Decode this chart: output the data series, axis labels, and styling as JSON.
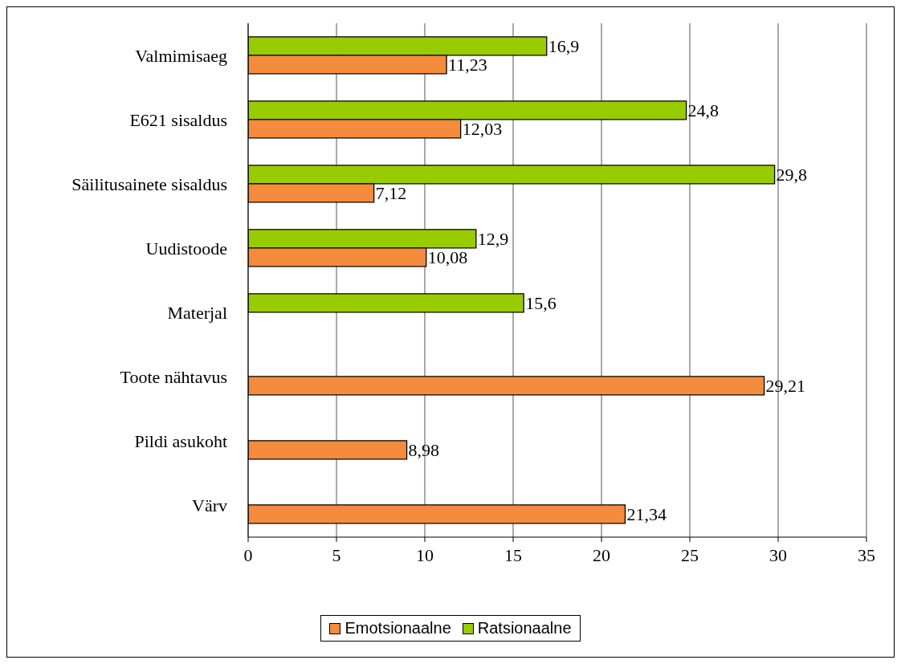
{
  "chart_data": {
    "type": "bar",
    "orientation": "horizontal",
    "categories": [
      "Valmimisaeg",
      "E621 sisaldus",
      "Säilitusainete sisaldus",
      "Uudistoode",
      "Materjal",
      "Toote nähtavus",
      "Pildi asukoht",
      "Värv"
    ],
    "series": [
      {
        "name": "Emotsionaalne",
        "color": "#f58b3c",
        "values": [
          11.23,
          12.03,
          7.12,
          10.08,
          null,
          29.21,
          8.98,
          21.34
        ],
        "value_labels": [
          "11,23",
          "12,03",
          "7,12",
          "10,08",
          null,
          "29,21",
          "8,98",
          "21,34"
        ]
      },
      {
        "name": "Ratsionaalne",
        "color": "#99cc00",
        "values": [
          16.9,
          24.8,
          29.8,
          12.9,
          15.6,
          null,
          null,
          null
        ],
        "value_labels": [
          "16,9",
          "24,8",
          "29,8",
          "12,9",
          "15,6",
          null,
          null,
          null
        ]
      }
    ],
    "xlim": [
      0,
      35
    ],
    "xticks": [
      0,
      5,
      10,
      15,
      20,
      25,
      30,
      35
    ],
    "grid": "x",
    "legend": "bottom"
  }
}
